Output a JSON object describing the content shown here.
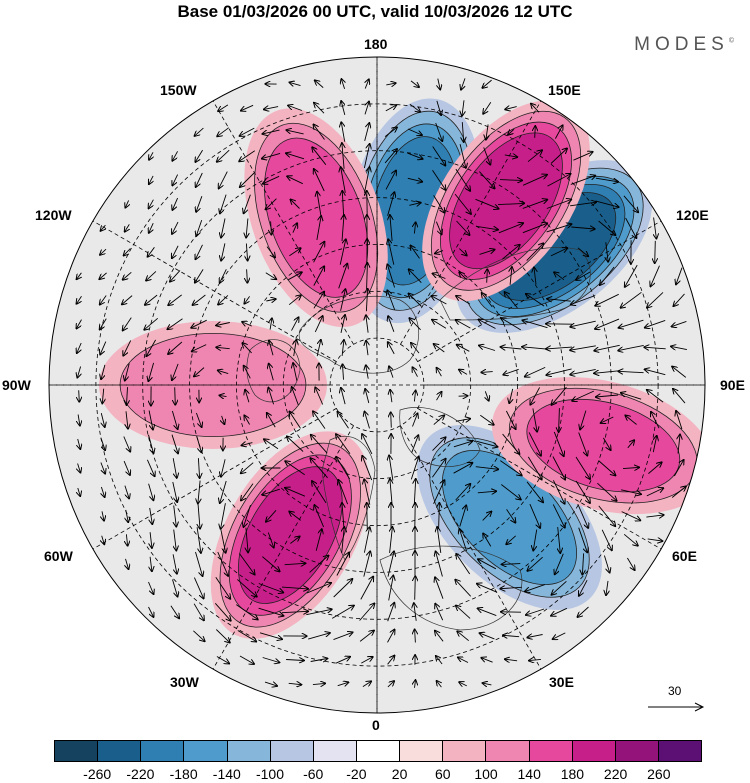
{
  "title": "Base 01/03/2026 00 UTC, valid 10/03/2026 12 UTC",
  "brand": "MODES",
  "brand_mark": "©",
  "longitude_labels": {
    "lon_180": "180",
    "lon_150w": "150W",
    "lon_150e": "150E",
    "lon_120w": "120W",
    "lon_120e": "120E",
    "lon_90w": "90W",
    "lon_90e": "90E",
    "lon_60w": "60W",
    "lon_60e": "60E",
    "lon_30w": "30W",
    "lon_30e": "30E",
    "lon_0": "0"
  },
  "reference_vector": {
    "label": "30"
  },
  "colorbar": {
    "colors": [
      "#15425f",
      "#1a5f8c",
      "#2f7fb3",
      "#4f9ccc",
      "#86b6da",
      "#b7c6e2",
      "#e4e3f1",
      "#ffffff",
      "#f9dcdc",
      "#f3b3c1",
      "#ef86b1",
      "#e5489d",
      "#c71f8a",
      "#94137a",
      "#5c1073"
    ],
    "ticks": [
      "-260",
      "-220",
      "-180",
      "-140",
      "-100",
      "-60",
      "-20",
      "20",
      "60",
      "100",
      "140",
      "180",
      "220",
      "260"
    ]
  },
  "field_features": [
    {
      "name": "blue-anomaly-center-north",
      "sign": "negative",
      "intensity": 160,
      "lon": 168,
      "lat": 52,
      "spread": 1.0
    },
    {
      "name": "blue-anomaly-west-canada",
      "sign": "negative",
      "intensity": 200,
      "lon": 128,
      "lat": 42,
      "spread": 1.0
    },
    {
      "name": "blue-anomaly-eurasia",
      "sign": "negative",
      "intensity": 130,
      "lon": 45,
      "lat": 50,
      "spread": 1.0
    },
    {
      "name": "pink-anomaly-pacific",
      "sign": "positive",
      "intensity": 170,
      "lon": 145,
      "lat": 42,
      "spread": 1.0
    },
    {
      "name": "pink-anomaly-bering",
      "sign": "positive",
      "intensity": 130,
      "lon": 200,
      "lat": 52,
      "spread": 1.0
    },
    {
      "name": "pink-anomaly-hudson",
      "sign": "positive",
      "intensity": 110,
      "lon": 75,
      "lat": 40,
      "spread": 1.0
    },
    {
      "name": "pink-anomaly-europe",
      "sign": "positive",
      "intensity": 160,
      "lon": 330,
      "lat": 53,
      "spread": 1.0
    },
    {
      "name": "pink-anomaly-siberia",
      "sign": "positive",
      "intensity": 90,
      "lon": 270,
      "lat": 55,
      "spread": 1.0
    }
  ]
}
